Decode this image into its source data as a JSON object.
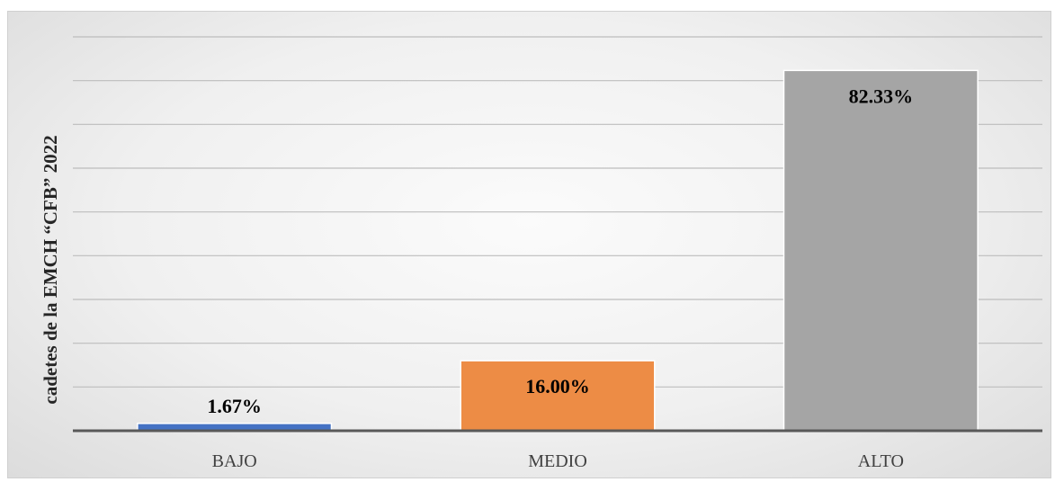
{
  "chart_data": {
    "type": "bar",
    "categories": [
      "BAJO",
      "MEDIO",
      "ALTO"
    ],
    "values": [
      1.67,
      16.0,
      82.33
    ],
    "data_labels": [
      "1.67%",
      "16.00%",
      "82.33%"
    ],
    "colors": [
      "#4472c4",
      "#ed8c45",
      "#a5a5a5"
    ],
    "title": "",
    "xlabel": "",
    "ylabel": "cadetes de la EMCH “CFB” 2022",
    "ylim": [
      0,
      90
    ],
    "grid": true,
    "legend": "none"
  }
}
